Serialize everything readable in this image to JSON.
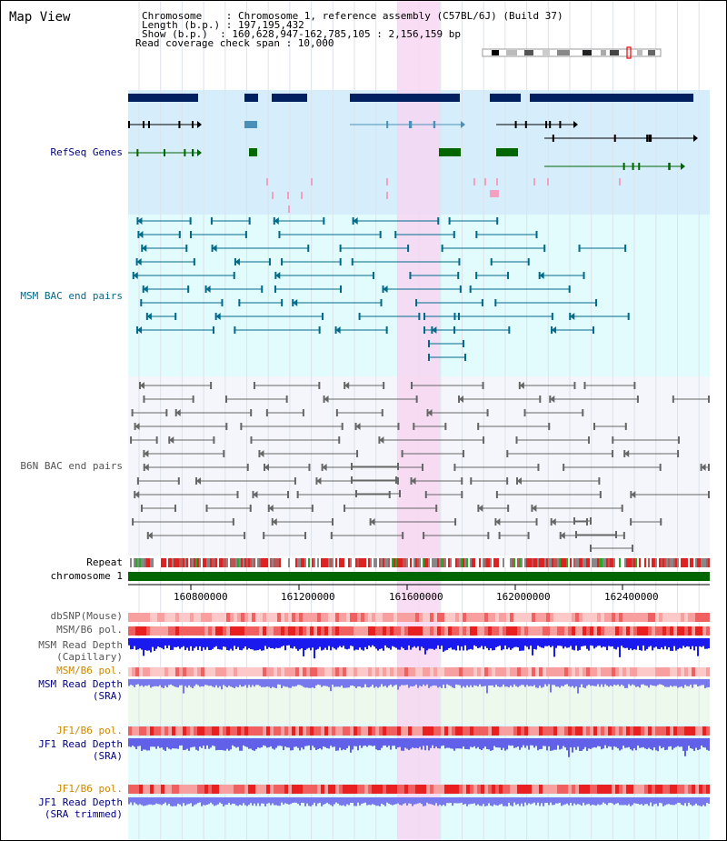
{
  "panel_title": "Map View",
  "info": {
    "line1": "Chromosome    : Chromosome 1, reference assembly (C57BL/6J) (Build 37)",
    "line2": "Length (b.p.) : 197,195,432",
    "line3": "Show (b.p.)  : 160,628,947-162,785,105 : 2,156,159 bp",
    "line4": "Read coverage check span : 10,000"
  },
  "track_labels": {
    "refseq": "RefSeq Genes",
    "msm_bac": "MSM BAC end pairs",
    "b6n_bac": "B6N BAC end pairs",
    "repeat": "Repeat",
    "chrom": "chromosome 1",
    "dbsnp": "dbSNP(Mouse)",
    "msm_b6_pol_1": "MSM/B6 pol.",
    "msm_depth_cap": "MSM Read Depth",
    "msm_depth_cap_sub": "(Capillary)",
    "msm_b6_pol_2": "MSM/B6 pol.",
    "msm_depth_sra": "MSM Read Depth",
    "msm_depth_sra_sub": "(SRA)",
    "jf1_b6_pol_1": "JF1/B6 pol.",
    "jf1_depth_sra": "JF1 Read Depth",
    "jf1_depth_sra_sub": "(SRA)",
    "jf1_b6_pol_2": "JF1/B6 pol.",
    "jf1_depth_trim": "JF1 Read Depth",
    "jf1_depth_trim_sub": "(SRA trimmed)"
  },
  "axis_ticks": [
    "160800000",
    "161200000",
    "161600000",
    "162000000",
    "162400000"
  ],
  "colors": {
    "refseq_bg": "#d6eefb",
    "msm_bg": "#e2fbfd",
    "b6n_bg": "#f4f6fb",
    "highlight": "#f8d4f1",
    "gene_navy": "#002060",
    "gene_teal": "#4a90b8",
    "gene_green": "#006600",
    "msm_pair": "#006a8a",
    "b6n_pair": "#666666",
    "chrom_green": "#006600",
    "depth_blue": "#1a1aee",
    "depth_light": "#7777ee",
    "label_navy": "#000080",
    "label_teal": "#006a8a",
    "label_gray": "#555555",
    "label_orange": "#cc8800"
  }
}
